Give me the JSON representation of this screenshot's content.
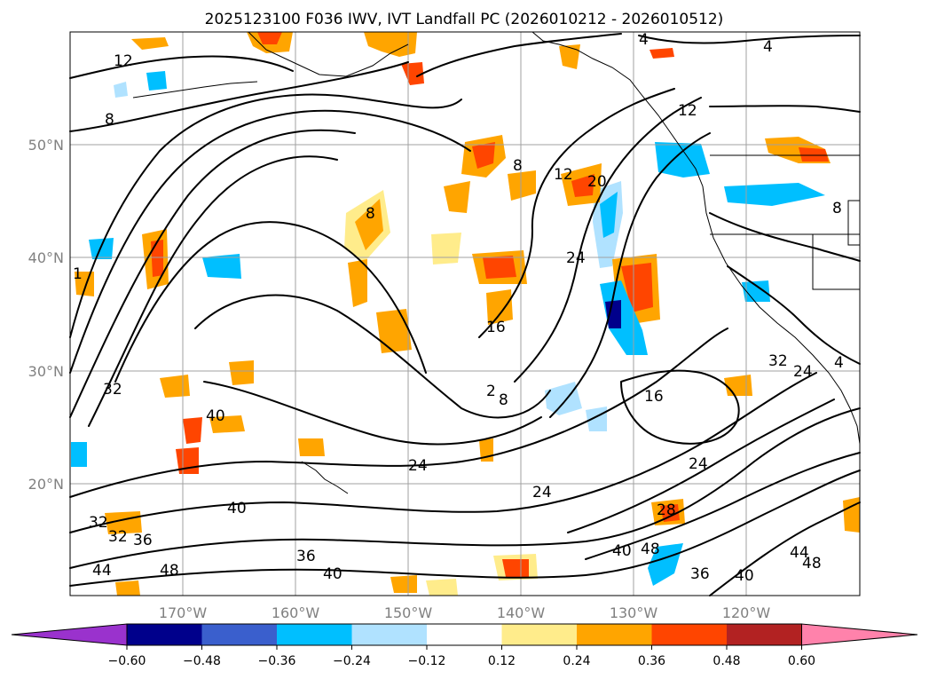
{
  "title": "2025123100 F036 IWV, IVT Landfall PC (2026010212 - 2026010512)",
  "map": {
    "lat_labels": [
      "50°N",
      "40°N",
      "30°N",
      "20°N"
    ],
    "lon_labels": [
      "170°W",
      "160°W",
      "150°W",
      "140°W",
      "130°W",
      "120°W"
    ],
    "contour_labels": [
      "12",
      "4",
      "4",
      "12",
      "8",
      "8",
      "12",
      "20",
      "8",
      "24",
      "16",
      "32",
      "40",
      "2",
      "8",
      "16",
      "24",
      "32",
      "24",
      "40",
      "24",
      "28",
      "32",
      "32",
      "36",
      "36",
      "40",
      "44",
      "48",
      "40",
      "48",
      "36",
      "40",
      "44",
      "48",
      "8",
      "24",
      "4",
      "1"
    ]
  },
  "colorbar": {
    "ticks": [
      "−0.60",
      "−0.48",
      "−0.36",
      "−0.24",
      "−0.12",
      "0.12",
      "0.24",
      "0.36",
      "0.48",
      "0.60"
    ],
    "colors": [
      "#9a32cd",
      "#00008b",
      "#3a5fcd",
      "#00bfff",
      "#b0e2ff",
      "#ffffff",
      "#ffec8b",
      "#ffa500",
      "#ff4500",
      "#b22222",
      "#ff82ab"
    ]
  }
}
